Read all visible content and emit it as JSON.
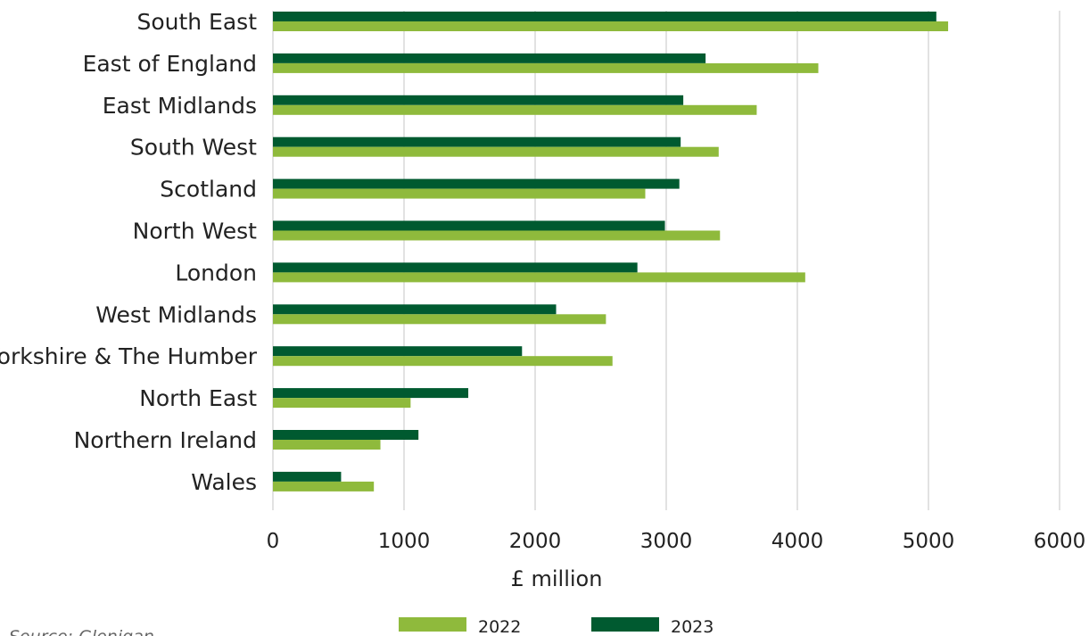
{
  "colors": {
    "series_2022": "#8fba3c",
    "series_2023": "#005a30",
    "grid": "#d9d9d9"
  },
  "chart_data": {
    "type": "bar",
    "orientation": "horizontal",
    "categories": [
      "South East",
      "East of England",
      "East Midlands",
      "South West",
      "Scotland",
      "North West",
      "London",
      "West Midlands",
      "Yorkshire & The Humber",
      "North East",
      "Northern Ireland",
      "Wales"
    ],
    "series": [
      {
        "name": "2023",
        "values": [
          5060,
          3300,
          3130,
          3110,
          3100,
          2990,
          2780,
          2160,
          1900,
          1490,
          1110,
          520
        ]
      },
      {
        "name": "2022",
        "values": [
          5150,
          4160,
          3690,
          3400,
          2840,
          3410,
          4060,
          2540,
          2590,
          1050,
          820,
          770
        ]
      }
    ],
    "xlabel": "£ million",
    "xlim": [
      0,
      6000
    ],
    "xticks": [
      "0",
      "1000",
      "2000",
      "3000",
      "4000",
      "5000",
      "6000"
    ],
    "grid": true,
    "legend_position": "bottom",
    "legend": [
      {
        "name": "2022",
        "color": "#8fba3c"
      },
      {
        "name": "2023",
        "color": "#005a30"
      }
    ],
    "source": "Source: Glenigan"
  }
}
